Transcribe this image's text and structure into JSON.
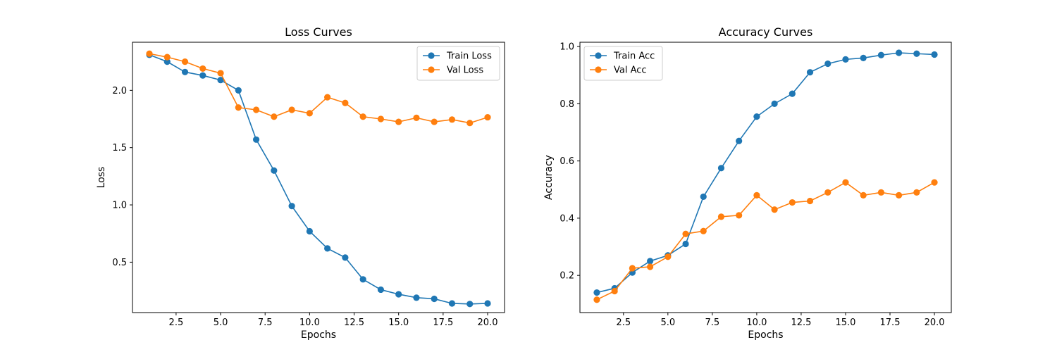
{
  "chart_data": [
    {
      "type": "line",
      "title": "Loss Curves",
      "xlabel": "Epochs",
      "ylabel": "Loss",
      "xlim": [
        0.05,
        20.95
      ],
      "ylim": [
        0.06,
        2.42
      ],
      "xticks": [
        2.5,
        5.0,
        7.5,
        10.0,
        12.5,
        15.0,
        17.5,
        20.0
      ],
      "yticks": [
        0.5,
        1.0,
        1.5,
        2.0
      ],
      "legend": "top-right",
      "x": [
        1,
        2,
        3,
        4,
        5,
        6,
        7,
        8,
        9,
        10,
        11,
        12,
        13,
        14,
        15,
        16,
        17,
        18,
        19,
        20
      ],
      "series": [
        {
          "name": "Train Loss",
          "color": "#1f77b4",
          "values": [
            2.31,
            2.25,
            2.16,
            2.13,
            2.09,
            2.0,
            1.57,
            1.3,
            0.99,
            0.77,
            0.62,
            0.54,
            0.35,
            0.26,
            0.22,
            0.19,
            0.18,
            0.14,
            0.135,
            0.14
          ]
        },
        {
          "name": "Val Loss",
          "color": "#ff7f0e",
          "values": [
            2.32,
            2.29,
            2.25,
            2.19,
            2.15,
            1.85,
            1.83,
            1.77,
            1.83,
            1.8,
            1.94,
            1.89,
            1.77,
            1.75,
            1.725,
            1.76,
            1.725,
            1.745,
            1.715,
            1.765
          ]
        }
      ]
    },
    {
      "type": "line",
      "title": "Accuracy Curves",
      "xlabel": "Epochs",
      "ylabel": "Accuracy",
      "xlim": [
        0.05,
        20.95
      ],
      "ylim": [
        0.07,
        1.015
      ],
      "xticks": [
        2.5,
        5.0,
        7.5,
        10.0,
        12.5,
        15.0,
        17.5,
        20.0
      ],
      "yticks": [
        0.2,
        0.4,
        0.6,
        0.8,
        1.0
      ],
      "legend": "top-left",
      "x": [
        1,
        2,
        3,
        4,
        5,
        6,
        7,
        8,
        9,
        10,
        11,
        12,
        13,
        14,
        15,
        16,
        17,
        18,
        19,
        20
      ],
      "series": [
        {
          "name": "Train Acc",
          "color": "#1f77b4",
          "values": [
            0.14,
            0.155,
            0.21,
            0.25,
            0.27,
            0.31,
            0.475,
            0.575,
            0.67,
            0.755,
            0.8,
            0.835,
            0.91,
            0.94,
            0.955,
            0.96,
            0.97,
            0.978,
            0.975,
            0.972
          ]
        },
        {
          "name": "Val Acc",
          "color": "#ff7f0e",
          "values": [
            0.115,
            0.145,
            0.225,
            0.23,
            0.265,
            0.345,
            0.355,
            0.405,
            0.41,
            0.48,
            0.43,
            0.455,
            0.46,
            0.49,
            0.525,
            0.48,
            0.49,
            0.48,
            0.49,
            0.525
          ]
        }
      ]
    }
  ]
}
